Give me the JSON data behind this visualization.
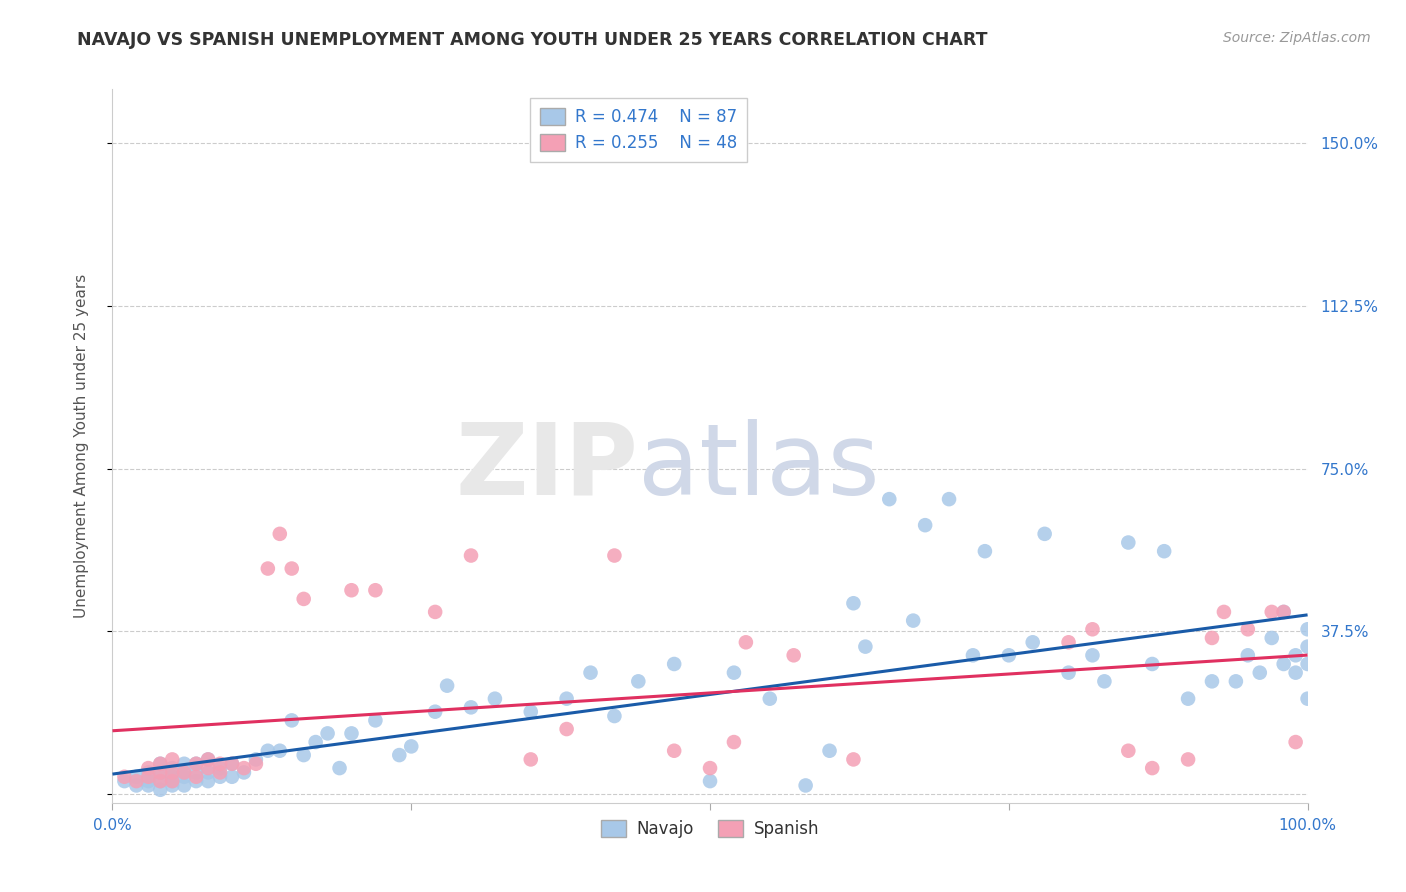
{
  "title": "NAVAJO VS SPANISH UNEMPLOYMENT AMONG YOUTH UNDER 25 YEARS CORRELATION CHART",
  "source": "Source: ZipAtlas.com",
  "ylabel": "Unemployment Among Youth under 25 years",
  "xlim": [
    0.0,
    1.0
  ],
  "ylim": [
    -0.02,
    1.625
  ],
  "xticks": [
    0.0,
    0.25,
    0.5,
    0.75,
    1.0
  ],
  "xticklabels": [
    "0.0%",
    "",
    "",
    "",
    "100.0%"
  ],
  "yticks": [
    0.0,
    0.375,
    0.75,
    1.125,
    1.5
  ],
  "yticklabels": [
    "",
    "37.5%",
    "75.0%",
    "112.5%",
    "150.0%"
  ],
  "navajo_R": 0.474,
  "navajo_N": 87,
  "spanish_R": 0.255,
  "spanish_N": 48,
  "navajo_color": "#a8c8e8",
  "spanish_color": "#f4a0b5",
  "navajo_line_color": "#1a5ba8",
  "spanish_line_color": "#e03060",
  "background_color": "#ffffff",
  "watermark_zip": "ZIP",
  "watermark_atlas": "atlas",
  "navajo_x": [
    0.01,
    0.02,
    0.02,
    0.03,
    0.03,
    0.03,
    0.04,
    0.04,
    0.04,
    0.04,
    0.05,
    0.05,
    0.05,
    0.05,
    0.06,
    0.06,
    0.06,
    0.06,
    0.07,
    0.07,
    0.07,
    0.08,
    0.08,
    0.08,
    0.09,
    0.09,
    0.1,
    0.1,
    0.11,
    0.12,
    0.13,
    0.14,
    0.15,
    0.16,
    0.17,
    0.18,
    0.19,
    0.2,
    0.22,
    0.24,
    0.25,
    0.27,
    0.28,
    0.3,
    0.32,
    0.35,
    0.38,
    0.4,
    0.42,
    0.44,
    0.47,
    0.5,
    0.52,
    0.55,
    0.58,
    0.6,
    0.62,
    0.63,
    0.65,
    0.67,
    0.68,
    0.7,
    0.72,
    0.73,
    0.75,
    0.77,
    0.78,
    0.8,
    0.82,
    0.83,
    0.85,
    0.87,
    0.88,
    0.9,
    0.92,
    0.94,
    0.95,
    0.96,
    0.97,
    0.98,
    0.98,
    0.99,
    0.99,
    1.0,
    1.0,
    1.0,
    1.0
  ],
  "navajo_y": [
    0.03,
    0.02,
    0.04,
    0.02,
    0.03,
    0.05,
    0.01,
    0.03,
    0.05,
    0.07,
    0.02,
    0.03,
    0.04,
    0.06,
    0.02,
    0.04,
    0.05,
    0.07,
    0.03,
    0.05,
    0.07,
    0.03,
    0.05,
    0.08,
    0.04,
    0.06,
    0.04,
    0.07,
    0.05,
    0.08,
    0.1,
    0.1,
    0.17,
    0.09,
    0.12,
    0.14,
    0.06,
    0.14,
    0.17,
    0.09,
    0.11,
    0.19,
    0.25,
    0.2,
    0.22,
    0.19,
    0.22,
    0.28,
    0.18,
    0.26,
    0.3,
    0.03,
    0.28,
    0.22,
    0.02,
    0.1,
    0.44,
    0.34,
    0.68,
    0.4,
    0.62,
    0.68,
    0.32,
    0.56,
    0.32,
    0.35,
    0.6,
    0.28,
    0.32,
    0.26,
    0.58,
    0.3,
    0.56,
    0.22,
    0.26,
    0.26,
    0.32,
    0.28,
    0.36,
    0.42,
    0.3,
    0.28,
    0.32,
    0.38,
    0.34,
    0.3,
    0.22
  ],
  "spanish_x": [
    0.01,
    0.02,
    0.03,
    0.03,
    0.04,
    0.04,
    0.04,
    0.05,
    0.05,
    0.05,
    0.06,
    0.07,
    0.07,
    0.08,
    0.08,
    0.09,
    0.09,
    0.1,
    0.11,
    0.12,
    0.13,
    0.14,
    0.15,
    0.16,
    0.2,
    0.22,
    0.27,
    0.3,
    0.35,
    0.38,
    0.42,
    0.47,
    0.5,
    0.52,
    0.53,
    0.57,
    0.62,
    0.8,
    0.82,
    0.85,
    0.87,
    0.9,
    0.92,
    0.93,
    0.95,
    0.97,
    0.98,
    0.99
  ],
  "spanish_y": [
    0.04,
    0.03,
    0.04,
    0.06,
    0.03,
    0.05,
    0.07,
    0.03,
    0.05,
    0.08,
    0.05,
    0.04,
    0.07,
    0.06,
    0.08,
    0.05,
    0.07,
    0.07,
    0.06,
    0.07,
    0.52,
    0.6,
    0.52,
    0.45,
    0.47,
    0.47,
    0.42,
    0.55,
    0.08,
    0.15,
    0.55,
    0.1,
    0.06,
    0.12,
    0.35,
    0.32,
    0.08,
    0.35,
    0.38,
    0.1,
    0.06,
    0.08,
    0.36,
    0.42,
    0.38,
    0.42,
    0.42,
    0.12
  ]
}
